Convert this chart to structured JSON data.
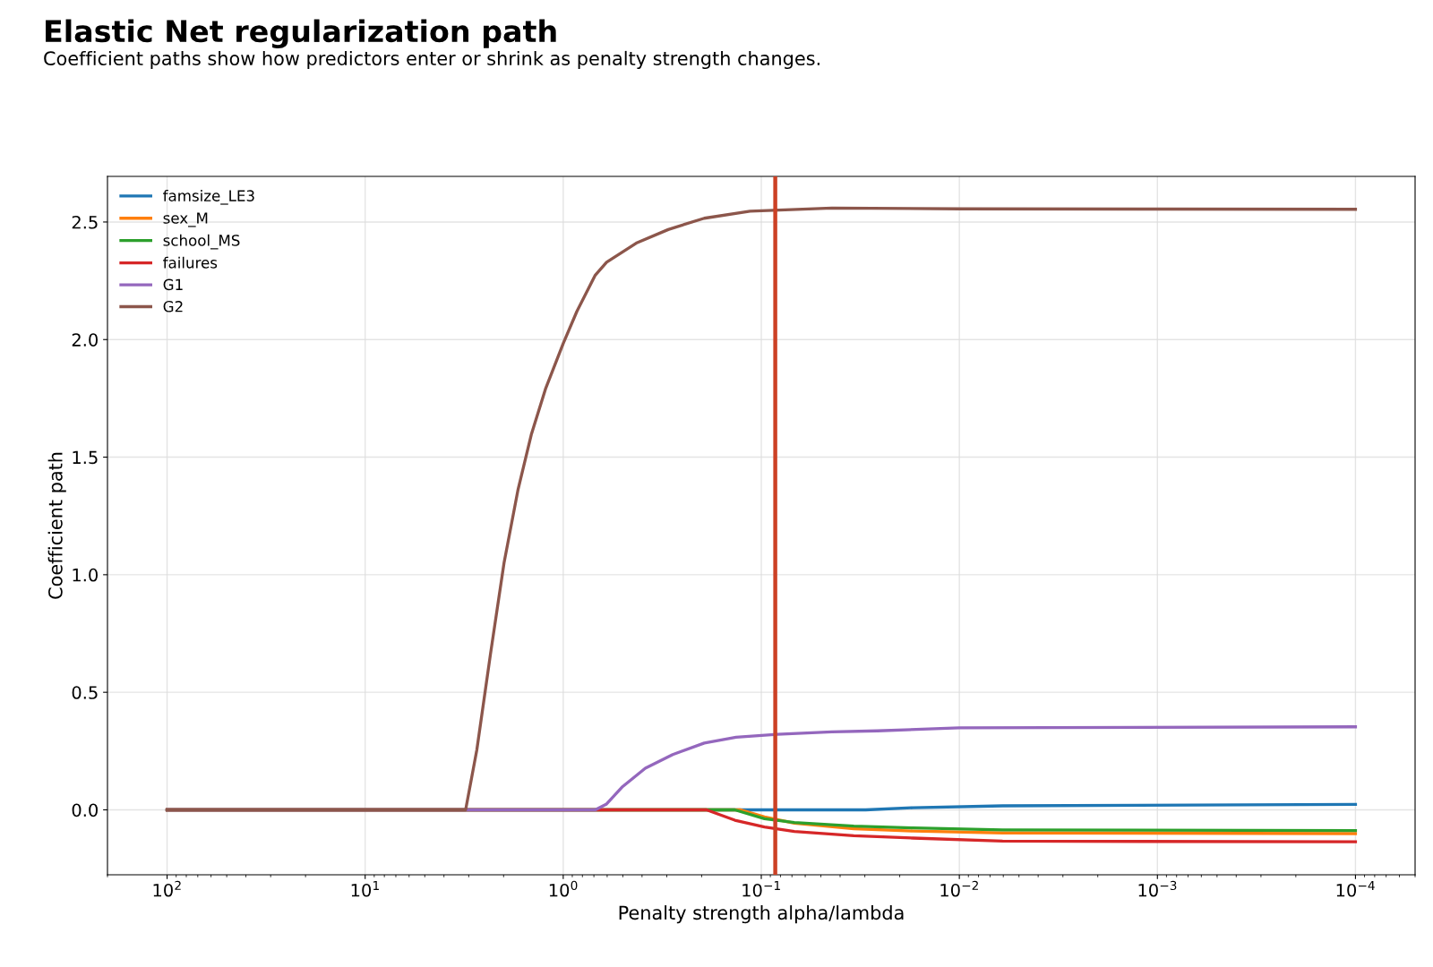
{
  "chart_data": {
    "type": "line",
    "title": "Elastic Net regularization path",
    "subtitle": "Coefficient paths show how predictors enter or shrink as penalty strength changes.",
    "xlabel": "Penalty strength alpha/lambda",
    "ylabel": "Coefficient path",
    "log": "x",
    "xlim": [
      200,
      5e-05
    ],
    "xticks": [
      {
        "value": 100,
        "label": "10$^{2}$"
      },
      {
        "value": 10,
        "label": "10$^{1}$"
      },
      {
        "value": 1,
        "label": "10$^{0}$"
      },
      {
        "value": 0.1,
        "label": "10$^{−1}$"
      },
      {
        "value": 0.01,
        "label": "10$^{−2}$"
      },
      {
        "value": 0.001,
        "label": "10$^{−3}$"
      },
      {
        "value": 0.0001,
        "label": "10$^{−4}$"
      }
    ],
    "ylim": [
      -0.276,
      2.694
    ],
    "yticks": [
      {
        "value": 0,
        "label": "0.0"
      },
      {
        "value": 0.5,
        "label": "0.5"
      },
      {
        "value": 1,
        "label": "1.0"
      },
      {
        "value": 1.5,
        "label": "1.5"
      },
      {
        "value": 2,
        "label": "2.0"
      },
      {
        "value": 2.5,
        "label": "2.5"
      }
    ],
    "grid": true,
    "legend": "top left",
    "marker": "none",
    "line_style": "solid",
    "ref_lines": [
      {
        "axis": "x",
        "value": 0.085,
        "color": "#cc4125"
      }
    ],
    "series": [
      {
        "name": "famsize_LE3",
        "color": "#1f77b4",
        "x": [
          100,
          0.0297,
          0.0171,
          0.00605,
          0.0001
        ],
        "values": [
          0,
          0,
          0.009,
          0.017,
          0.023
        ]
      },
      {
        "name": "sex_M",
        "color": "#ff7f0e",
        "x": [
          100,
          0.127,
          0.0964,
          0.0681,
          0.0341,
          0.0171,
          0.00605,
          0.0001
        ],
        "values": [
          0,
          0,
          -0.03,
          -0.057,
          -0.08,
          -0.09,
          -0.098,
          -0.101
        ]
      },
      {
        "name": "school_MS",
        "color": "#2ca02c",
        "x": [
          100,
          0.136,
          0.0964,
          0.0681,
          0.0341,
          0.0171,
          0.00605,
          0.0001
        ],
        "values": [
          0,
          0,
          -0.038,
          -0.054,
          -0.069,
          -0.077,
          -0.085,
          -0.088
        ]
      },
      {
        "name": "failures",
        "color": "#d62728",
        "x": [
          100,
          0.189,
          0.136,
          0.0964,
          0.0681,
          0.0341,
          0.0171,
          0.00605,
          0.0001
        ],
        "values": [
          0,
          0,
          -0.044,
          -0.073,
          -0.092,
          -0.11,
          -0.12,
          -0.133,
          -0.136
        ]
      },
      {
        "name": "G1",
        "color": "#9467bd",
        "x": [
          100,
          0.689,
          0.604,
          0.501,
          0.385,
          0.28,
          0.194,
          0.134,
          0.083,
          0.044,
          0.0259,
          0.01,
          0.0001
        ],
        "values": [
          0,
          0,
          0.025,
          0.099,
          0.177,
          0.235,
          0.284,
          0.309,
          0.321,
          0.332,
          0.336,
          0.349,
          0.353
        ]
      },
      {
        "name": "G2",
        "color": "#8c564b",
        "x": [
          100,
          3.11,
          2.73,
          2.33,
          1.99,
          1.69,
          1.45,
          1.23,
          1.0,
          0.853,
          0.689,
          0.604,
          0.428,
          0.295,
          0.194,
          0.114,
          0.044,
          0.01,
          0.001,
          0.0001
        ],
        "values": [
          0,
          0,
          0.255,
          0.662,
          1.05,
          1.363,
          1.595,
          1.789,
          1.983,
          2.12,
          2.274,
          2.329,
          2.41,
          2.468,
          2.516,
          2.546,
          2.559,
          2.556,
          2.555,
          2.554
        ]
      }
    ]
  }
}
